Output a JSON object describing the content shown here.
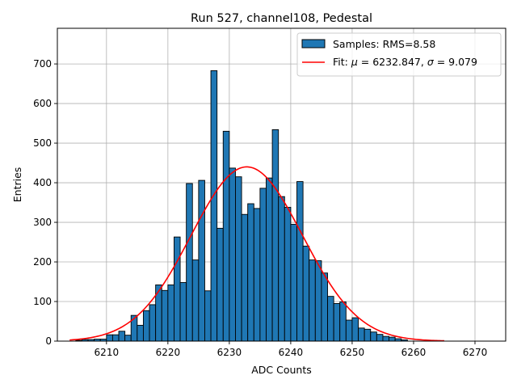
{
  "chart_data": {
    "type": "bar",
    "title": "Run 527, channel108, Pedestal",
    "xlabel": "ADC Counts",
    "ylabel": "Entries",
    "xlim": [
      6202,
      6275
    ],
    "ylim": [
      0,
      790
    ],
    "xticks": [
      6210,
      6220,
      6230,
      6240,
      6250,
      6260,
      6270
    ],
    "yticks": [
      0,
      100,
      200,
      300,
      400,
      500,
      600,
      700
    ],
    "grid": true,
    "legend": {
      "placement": "top-right",
      "entries": [
        {
          "label": "Samples: RMS=8.58",
          "kind": "patch"
        },
        {
          "label_prefix": "Fit: ",
          "mu_symbol": "μ",
          "mu_value": " = 6232.847, ",
          "sigma_symbol": "σ",
          "sigma_value": " = 9.079",
          "kind": "line"
        }
      ]
    },
    "histogram": {
      "name": "Samples",
      "bin_width": 1,
      "bin_starts": [
        6205,
        6206,
        6207,
        6208,
        6209,
        6210,
        6211,
        6212,
        6213,
        6214,
        6215,
        6216,
        6217,
        6218,
        6219,
        6220,
        6221,
        6222,
        6223,
        6224,
        6225,
        6226,
        6227,
        6228,
        6229,
        6230,
        6231,
        6232,
        6233,
        6234,
        6235,
        6236,
        6237,
        6238,
        6239,
        6240,
        6241,
        6242,
        6243,
        6244,
        6245,
        6246,
        6247,
        6248,
        6249,
        6250,
        6251,
        6252,
        6253,
        6254,
        6255,
        6256,
        6257,
        6258
      ],
      "values": [
        2,
        4,
        4,
        5,
        5,
        16,
        16,
        25,
        15,
        65,
        40,
        77,
        92,
        142,
        128,
        142,
        263,
        148,
        398,
        205,
        406,
        127,
        683,
        285,
        530,
        437,
        415,
        320,
        347,
        335,
        386,
        412,
        534,
        365,
        338,
        295,
        403,
        240,
        205,
        203,
        172,
        113,
        95,
        99,
        53,
        59,
        33,
        30,
        23,
        17,
        12,
        10,
        6,
        3
      ]
    },
    "fit": {
      "name": "Fit",
      "mu": 6232.847,
      "sigma": 9.079,
      "amplitude": 440,
      "x_range": [
        6204,
        6265
      ]
    },
    "colors": {
      "bar_fill": "#1f77b4",
      "bar_edge": "#000000",
      "fit_line": "#ff0000",
      "grid": "#b0b0b0"
    }
  }
}
